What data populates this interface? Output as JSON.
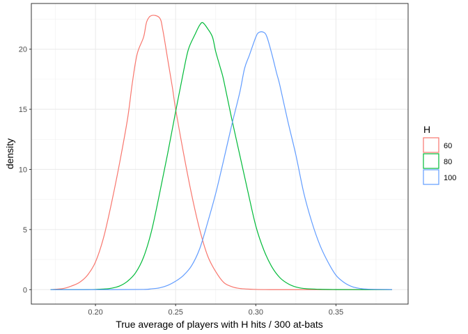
{
  "chart_data": {
    "type": "line",
    "xlabel": "True average of players with H hits / 300 at-bats",
    "ylabel": "density",
    "xlim": [
      0.16,
      0.395
    ],
    "ylim": [
      -1.2,
      23.8
    ],
    "x_ticks": [
      0.2,
      0.25,
      0.3,
      0.35
    ],
    "x_tick_labels": [
      "0.20",
      "0.25",
      "0.30",
      "0.35"
    ],
    "y_ticks": [
      0,
      5,
      10,
      15,
      20
    ],
    "y_tick_labels": [
      "0",
      "5",
      "10",
      "15",
      "20"
    ],
    "grid": true,
    "legend": {
      "title": "H",
      "position": "right"
    },
    "series": [
      {
        "name": "60",
        "color": "#F8766D",
        "points": [
          [
            0.172,
            0
          ],
          [
            0.18,
            0.1
          ],
          [
            0.185,
            0.3
          ],
          [
            0.19,
            0.6
          ],
          [
            0.195,
            1.2
          ],
          [
            0.2,
            2.3
          ],
          [
            0.205,
            4.3
          ],
          [
            0.21,
            7.2
          ],
          [
            0.215,
            10.5
          ],
          [
            0.22,
            14.2
          ],
          [
            0.223,
            17.2
          ],
          [
            0.226,
            19.6
          ],
          [
            0.23,
            21.0
          ],
          [
            0.232,
            22.3
          ],
          [
            0.235,
            22.8
          ],
          [
            0.24,
            22.6
          ],
          [
            0.242,
            21.6
          ],
          [
            0.245,
            19.2
          ],
          [
            0.248,
            16.8
          ],
          [
            0.25,
            15.0
          ],
          [
            0.255,
            11.3
          ],
          [
            0.26,
            7.9
          ],
          [
            0.265,
            5.0
          ],
          [
            0.27,
            2.8
          ],
          [
            0.275,
            1.5
          ],
          [
            0.28,
            0.6
          ],
          [
            0.285,
            0.25
          ],
          [
            0.29,
            0.1
          ],
          [
            0.3,
            0.02
          ],
          [
            0.31,
            0
          ],
          [
            0.33,
            0
          ],
          [
            0.36,
            0
          ],
          [
            0.385,
            0
          ]
        ]
      },
      {
        "name": "80",
        "color": "#00BA38",
        "points": [
          [
            0.172,
            0
          ],
          [
            0.19,
            0
          ],
          [
            0.2,
            0.02
          ],
          [
            0.205,
            0.05
          ],
          [
            0.21,
            0.12
          ],
          [
            0.215,
            0.3
          ],
          [
            0.22,
            0.7
          ],
          [
            0.225,
            1.4
          ],
          [
            0.23,
            2.7
          ],
          [
            0.235,
            4.9
          ],
          [
            0.24,
            8.0
          ],
          [
            0.245,
            11.3
          ],
          [
            0.25,
            14.8
          ],
          [
            0.255,
            18.2
          ],
          [
            0.258,
            20.0
          ],
          [
            0.262,
            21.2
          ],
          [
            0.265,
            22.0
          ],
          [
            0.267,
            22.2
          ],
          [
            0.27,
            21.7
          ],
          [
            0.273,
            21.0
          ],
          [
            0.275,
            19.8
          ],
          [
            0.278,
            18.4
          ],
          [
            0.28,
            17.4
          ],
          [
            0.285,
            14.2
          ],
          [
            0.29,
            11.2
          ],
          [
            0.295,
            8.2
          ],
          [
            0.3,
            5.3
          ],
          [
            0.305,
            3.3
          ],
          [
            0.31,
            1.9
          ],
          [
            0.315,
            1.0
          ],
          [
            0.32,
            0.5
          ],
          [
            0.325,
            0.22
          ],
          [
            0.33,
            0.1
          ],
          [
            0.34,
            0.03
          ],
          [
            0.35,
            0.01
          ],
          [
            0.37,
            0
          ],
          [
            0.385,
            0
          ]
        ]
      },
      {
        "name": "100",
        "color": "#619CFF",
        "points": [
          [
            0.172,
            0
          ],
          [
            0.21,
            0
          ],
          [
            0.23,
            0.02
          ],
          [
            0.235,
            0.07
          ],
          [
            0.24,
            0.15
          ],
          [
            0.245,
            0.35
          ],
          [
            0.25,
            0.7
          ],
          [
            0.255,
            1.2
          ],
          [
            0.26,
            2.0
          ],
          [
            0.265,
            3.4
          ],
          [
            0.27,
            5.6
          ],
          [
            0.275,
            8.0
          ],
          [
            0.28,
            10.8
          ],
          [
            0.285,
            13.7
          ],
          [
            0.29,
            16.4
          ],
          [
            0.293,
            18.4
          ],
          [
            0.296,
            19.5
          ],
          [
            0.3,
            21.0
          ],
          [
            0.302,
            21.4
          ],
          [
            0.305,
            21.4
          ],
          [
            0.307,
            21.0
          ],
          [
            0.31,
            19.6
          ],
          [
            0.313,
            18.0
          ],
          [
            0.315,
            17.0
          ],
          [
            0.32,
            14.0
          ],
          [
            0.325,
            11.2
          ],
          [
            0.33,
            8.0
          ],
          [
            0.335,
            5.6
          ],
          [
            0.34,
            3.7
          ],
          [
            0.345,
            2.3
          ],
          [
            0.35,
            1.2
          ],
          [
            0.355,
            0.6
          ],
          [
            0.36,
            0.25
          ],
          [
            0.365,
            0.1
          ],
          [
            0.37,
            0.04
          ],
          [
            0.385,
            0.01
          ]
        ]
      }
    ]
  }
}
